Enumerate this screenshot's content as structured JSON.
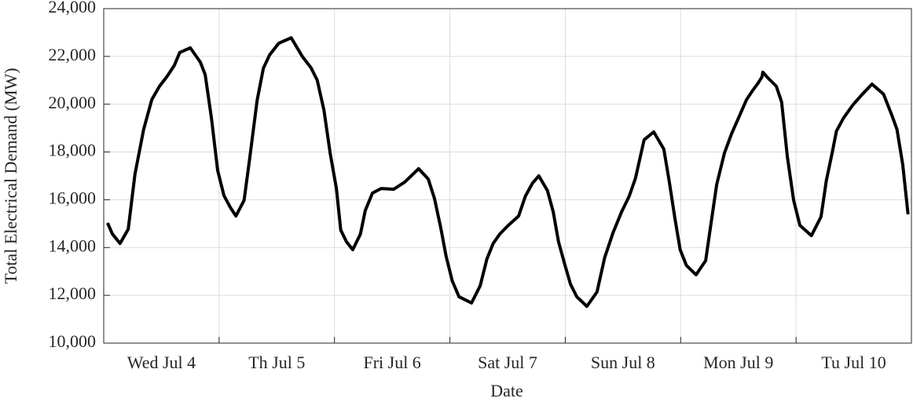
{
  "chart_data": {
    "type": "line",
    "xlabel": "Date",
    "ylabel": "Total Electrical Demand (MW)",
    "color": "#000000",
    "grid": true,
    "xlim": [
      0,
      168
    ],
    "ylim": [
      10000,
      24000
    ],
    "xticks": [
      {
        "value": 24,
        "label": "Wed Jul 4"
      },
      {
        "value": 48,
        "label": "Th Jul 5"
      },
      {
        "value": 72,
        "label": "Fri Jul 6"
      },
      {
        "value": 96,
        "label": "Sat Jul 7"
      },
      {
        "value": 120,
        "label": "Sun Jul 8"
      },
      {
        "value": 144,
        "label": "Mon Jul 9"
      },
      {
        "value": 168,
        "label": "Tu Jul 10"
      }
    ],
    "yticks": [
      {
        "value": 10000,
        "label": "10,000"
      },
      {
        "value": 12000,
        "label": "12,000"
      },
      {
        "value": 14000,
        "label": "14,000"
      },
      {
        "value": 16000,
        "label": "16,000"
      },
      {
        "value": 18000,
        "label": "18,000"
      },
      {
        "value": 20000,
        "label": "20,000"
      },
      {
        "value": 22000,
        "label": "22,000"
      },
      {
        "value": 24000,
        "label": "24,000"
      }
    ],
    "x": [
      0.8,
      1.8,
      3.4,
      5.1,
      6.5,
      8.3,
      10.0,
      11.6,
      13.2,
      14.7,
      15.8,
      18.0,
      20.1,
      21.1,
      22.4,
      23.7,
      25.0,
      26.3,
      27.5,
      29.2,
      30.4,
      31.9,
      33.2,
      34.5,
      36.4,
      39.0,
      41.3,
      43.1,
      44.4,
      45.8,
      47.1,
      48.4,
      49.3,
      50.5,
      51.8,
      53.4,
      54.4,
      55.9,
      57.7,
      60.3,
      62.6,
      65.5,
      67.5,
      68.8,
      70.1,
      71.2,
      72.5,
      73.9,
      76.5,
      78.3,
      79.7,
      81.0,
      82.4,
      84.0,
      86.3,
      87.7,
      89.2,
      90.5,
      92.3,
      93.5,
      94.6,
      95.9,
      97.1,
      98.4,
      100.5,
      102.6,
      104.2,
      105.9,
      107.7,
      109.3,
      110.6,
      112.4,
      114.4,
      116.5,
      117.6,
      118.8,
      119.9,
      121.2,
      123.2,
      125.2,
      126.3,
      127.5,
      129.1,
      130.6,
      132.2,
      133.7,
      135.0,
      136.1,
      136.9,
      137.1,
      138.1,
      139.9,
      141.0,
      142.2,
      143.5,
      144.8,
      147.2,
      149.2,
      150.3,
      151.5,
      152.4,
      153.9,
      155.9,
      157.8,
      159.8,
      162.2,
      164.0,
      165.0,
      166.2,
      167.3
    ],
    "values": [
      15030,
      14570,
      14170,
      14770,
      17070,
      18940,
      20190,
      20750,
      21170,
      21630,
      22160,
      22360,
      21760,
      21240,
      19430,
      17230,
      16180,
      15690,
      15320,
      15980,
      17790,
      20150,
      21500,
      22060,
      22550,
      22780,
      22000,
      21530,
      21010,
      19760,
      17950,
      16470,
      14730,
      14240,
      13910,
      14570,
      15550,
      16280,
      16470,
      16440,
      16740,
      17300,
      16870,
      16050,
      14830,
      13650,
      12600,
      11940,
      11680,
      12400,
      13520,
      14170,
      14570,
      14900,
      15320,
      16150,
      16700,
      17000,
      16380,
      15490,
      14240,
      13290,
      12460,
      11940,
      11540,
      12140,
      13580,
      14600,
      15490,
      16150,
      16900,
      18510,
      18840,
      18120,
      16800,
      15230,
      13910,
      13250,
      12860,
      13450,
      14990,
      16640,
      17950,
      18770,
      19500,
      20190,
      20580,
      20880,
      21140,
      21340,
      21110,
      20750,
      20090,
      17790,
      15980,
      14930,
      14500,
      15290,
      16800,
      17950,
      18870,
      19430,
      19990,
      20420,
      20840,
      20420,
      19500,
      18940,
      17460,
      15390
    ]
  }
}
